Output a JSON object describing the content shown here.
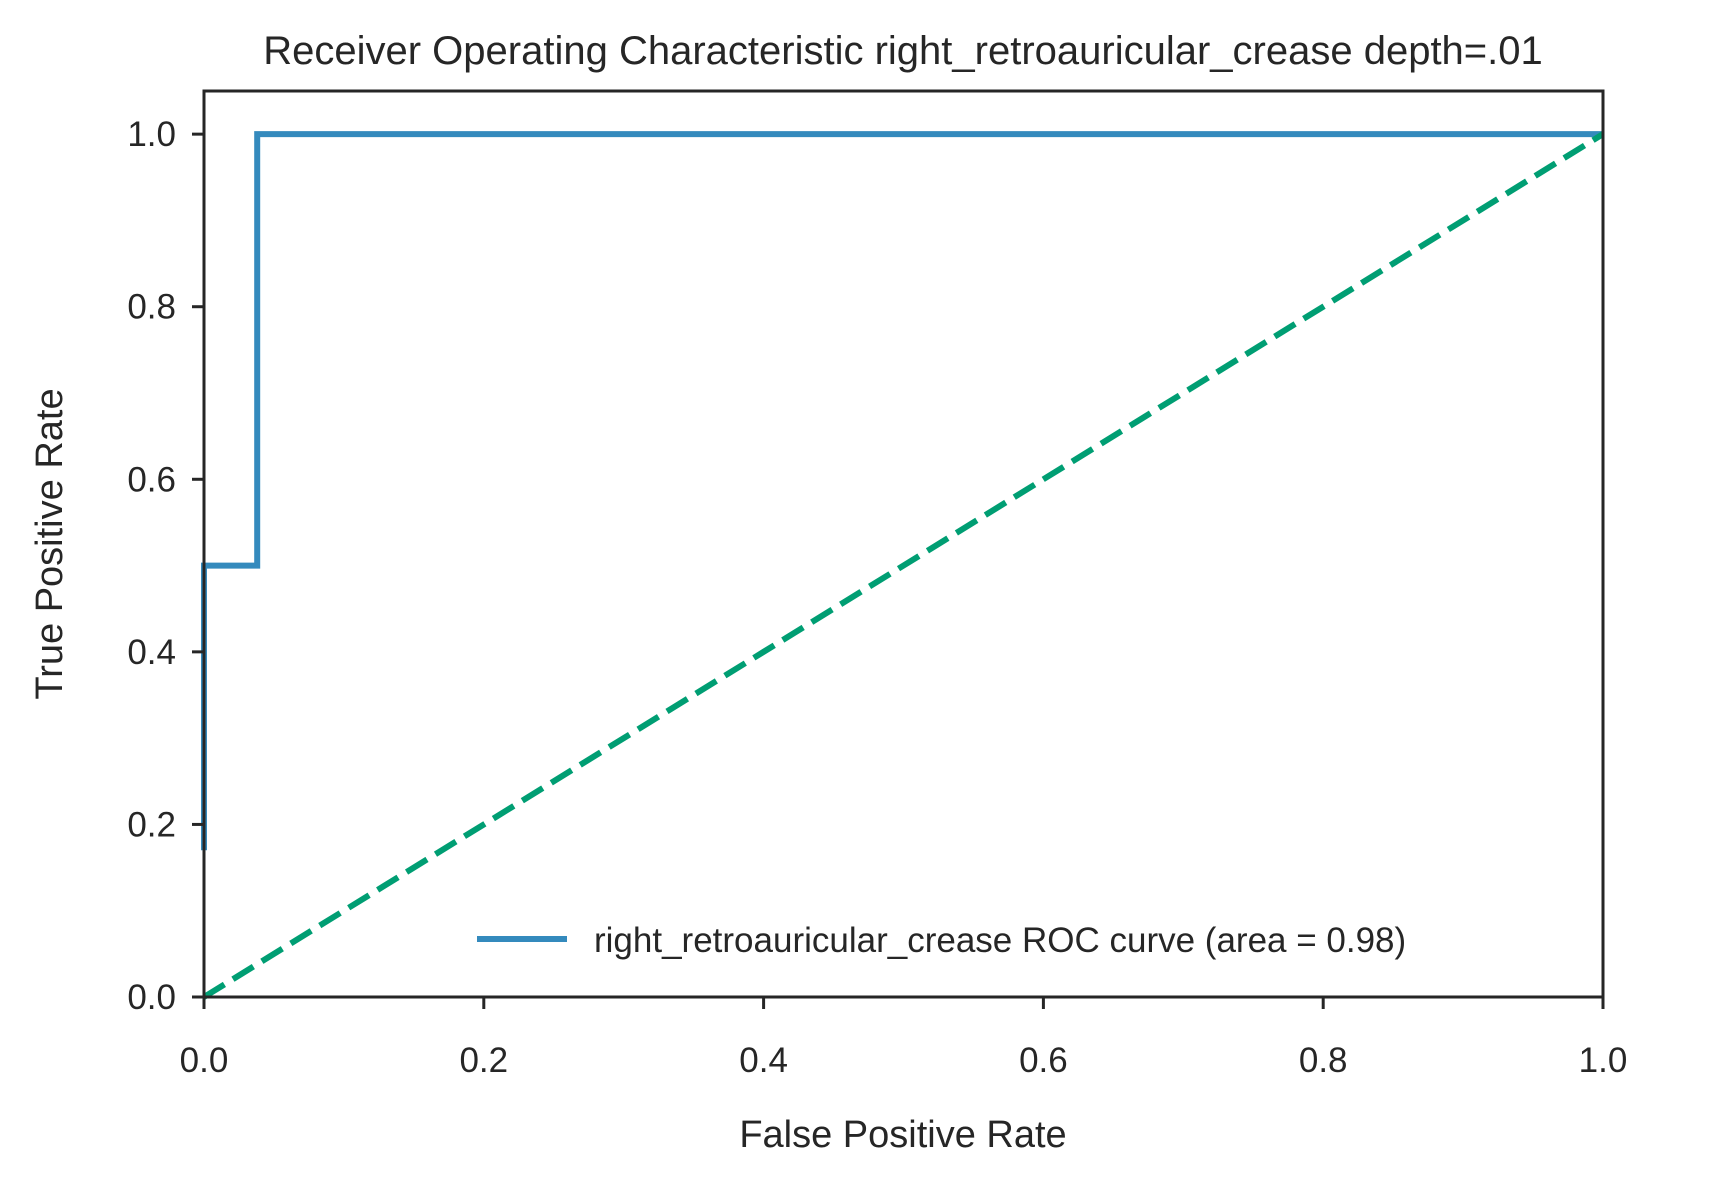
{
  "chart_data": {
    "type": "line",
    "title": "Receiver Operating Characteristic right_retroauricular_crease depth=.01",
    "xlabel": "False Positive Rate",
    "ylabel": "True Positive Rate",
    "xlim": [
      0.0,
      1.0
    ],
    "ylim": [
      0.0,
      1.05
    ],
    "xticks": [
      0.0,
      0.2,
      0.4,
      0.6,
      0.8,
      1.0
    ],
    "yticks": [
      0.0,
      0.2,
      0.4,
      0.6,
      0.8,
      1.0
    ],
    "xtick_labels": [
      "0.0",
      "0.2",
      "0.4",
      "0.6",
      "0.8",
      "1.0"
    ],
    "ytick_labels": [
      "0.0",
      "0.2",
      "0.4",
      "0.6",
      "0.8",
      "1.0"
    ],
    "grid": false,
    "legend_position": "lower-right",
    "series": [
      {
        "name": "right_retroauricular_crease ROC curve (area = 0.98)",
        "style": "solid",
        "color": "#348abd",
        "x": [
          0.0,
          0.0,
          0.038,
          0.038,
          1.0
        ],
        "y": [
          0.17,
          0.5,
          0.5,
          1.0,
          1.0
        ]
      },
      {
        "style": "dashed",
        "color": "#009e73",
        "x": [
          0.0,
          1.0
        ],
        "y": [
          0.0,
          1.0
        ]
      }
    ]
  }
}
